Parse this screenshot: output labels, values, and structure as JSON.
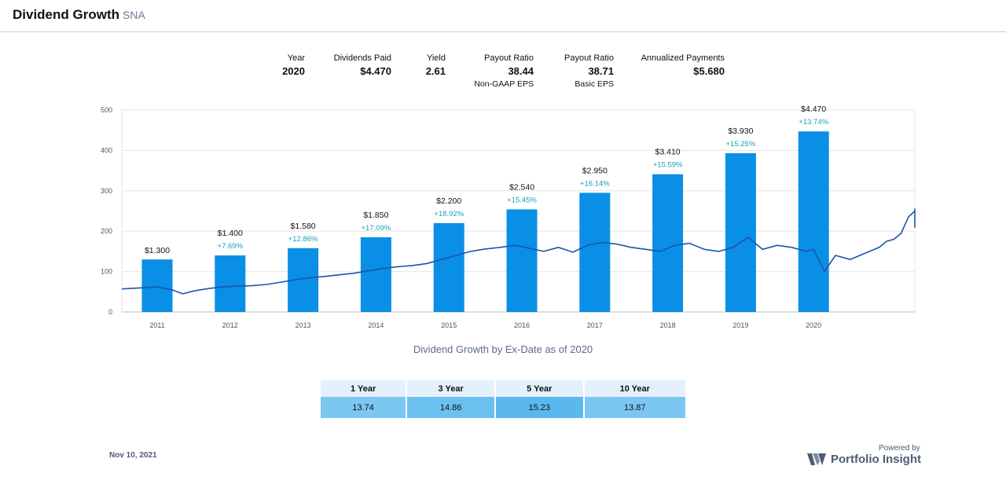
{
  "header": {
    "title": "Dividend Growth",
    "ticker": "SNA"
  },
  "stats": {
    "year": {
      "label": "Year",
      "value": "2020"
    },
    "dividends_paid": {
      "label": "Dividends Paid",
      "value": "$4.470"
    },
    "yield": {
      "label": "Yield",
      "value": "2.61"
    },
    "payout_nongaap": {
      "label": "Payout Ratio",
      "value": "38.44",
      "sub": "Non-GAAP EPS"
    },
    "payout_basic": {
      "label": "Payout Ratio",
      "value": "38.71",
      "sub": "Basic EPS"
    },
    "annualized": {
      "label": "Annualized Payments",
      "value": "$5.680"
    }
  },
  "chart_data": {
    "type": "bar",
    "caption": "Dividend Growth by Ex-Date as of 2020",
    "categories": [
      "2011",
      "2012",
      "2013",
      "2014",
      "2015",
      "2016",
      "2017",
      "2018",
      "2019",
      "2020"
    ],
    "values": [
      1.3,
      1.4,
      1.58,
      1.85,
      2.2,
      2.54,
      2.95,
      3.41,
      3.93,
      4.47
    ],
    "value_labels": [
      "$1.300",
      "$1.400",
      "$1.580",
      "$1.850",
      "$2.200",
      "$2.540",
      "$2.950",
      "$3.410",
      "$3.930",
      "$4.470"
    ],
    "growth_labels": [
      "",
      "+7.69%",
      "+12.86%",
      "+17.09%",
      "+18.92%",
      "+15.45%",
      "+16.14%",
      "+15.59%",
      "+15.25%",
      "+13.74%"
    ],
    "bar_color": "#0a8fe6",
    "growth_color": "#17a2b8",
    "ylim": [
      0,
      500
    ],
    "yticks": [
      0,
      100,
      200,
      300,
      400,
      500
    ],
    "grid": true,
    "price_line": {
      "color": "#1a56a8",
      "years": [
        2010.5,
        2010.8,
        2011.0,
        2011.2,
        2011.35,
        2011.5,
        2011.7,
        2011.9,
        2012.1,
        2012.3,
        2012.5,
        2012.7,
        2012.9,
        2013.1,
        2013.3,
        2013.5,
        2013.7,
        2013.9,
        2014.1,
        2014.3,
        2014.5,
        2014.7,
        2014.9,
        2015.1,
        2015.3,
        2015.5,
        2015.7,
        2015.9,
        2016.1,
        2016.3,
        2016.5,
        2016.7,
        2016.9,
        2017.1,
        2017.3,
        2017.5,
        2017.7,
        2017.9,
        2018.1,
        2018.3,
        2018.5,
        2018.7,
        2018.9,
        2019.1,
        2019.3,
        2019.5,
        2019.7,
        2019.9,
        2020.0,
        2020.15,
        2020.3,
        2020.5,
        2020.7,
        2020.9,
        2021.0,
        2021.1,
        2021.2,
        2021.3,
        2021.4,
        2021.5,
        2021.6,
        2021.7,
        2021.8,
        2021.9,
        2021.95
      ],
      "values": [
        57,
        60,
        62,
        55,
        45,
        52,
        58,
        62,
        64,
        65,
        68,
        74,
        80,
        85,
        88,
        92,
        96,
        102,
        108,
        112,
        115,
        120,
        130,
        140,
        150,
        156,
        160,
        165,
        158,
        150,
        160,
        148,
        165,
        172,
        168,
        160,
        155,
        150,
        165,
        170,
        155,
        150,
        160,
        185,
        155,
        165,
        160,
        150,
        155,
        100,
        140,
        130,
        145,
        160,
        175,
        180,
        195,
        235,
        250,
        255,
        230,
        225,
        220,
        210,
        215
      ]
    }
  },
  "growth_table": {
    "headers": [
      "1 Year",
      "3 Year",
      "5 Year",
      "10 Year"
    ],
    "values": [
      "13.74",
      "14.86",
      "15.23",
      "13.87"
    ]
  },
  "footer": {
    "date": "Nov 10, 2021",
    "powered_by": "Powered by",
    "brand": "Portfolio Insight"
  }
}
